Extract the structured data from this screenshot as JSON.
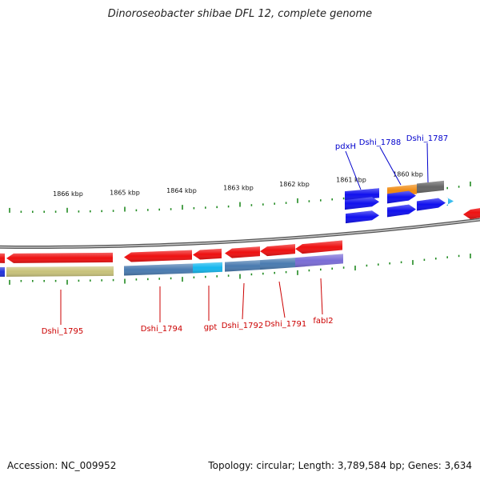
{
  "title": "Dinoroseobacter shibae DFL 12, complete genome",
  "accession": "Accession: NC_009952",
  "topology": "Topology: circular; Length: 3,789,584 bp; Genes: 3,634",
  "colors": {
    "forward_arrow": "#1010ee",
    "reverse_arrow": "#ee1111",
    "backbone": "#999999",
    "tick": "#228B22",
    "label_forward": "#0000cc",
    "label_reverse": "#cc0000"
  },
  "scale_labels": [
    "1866 kbp",
    "1865 kbp",
    "1864 kbp",
    "1863 kbp",
    "1862 kbp",
    "1861 kbp",
    "1860 kbp"
  ],
  "genes_forward": [
    {
      "label": "pdxH",
      "cog_color": "#1111ee"
    },
    {
      "label": "Dshi_1788",
      "cog_color": "#f08a10"
    },
    {
      "label": "Dshi_1787",
      "cog_color": "#666666"
    }
  ],
  "genes_reverse": [
    {
      "label": "Dshi_1795",
      "cog_color": "#c8c27a"
    },
    {
      "label": "Dshi_1794",
      "cog_color": "#4a7bb0"
    },
    {
      "label": "gpt",
      "cog_color": "#15b7ee"
    },
    {
      "label": "Dshi_1792",
      "cog_color": "#4a7bb0"
    },
    {
      "label": "Dshi_1791",
      "cog_color": "#4a7bb0"
    },
    {
      "label": "fabI2",
      "cog_color": "#7a6cd6"
    }
  ]
}
